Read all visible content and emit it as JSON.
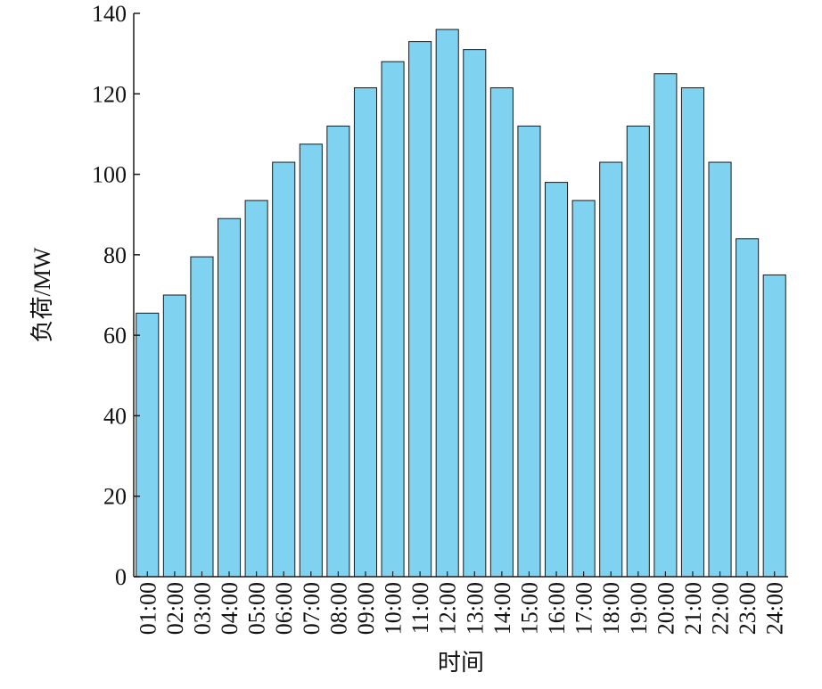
{
  "chart_data": {
    "type": "bar",
    "categories": [
      "01:00",
      "02:00",
      "03:00",
      "04:00",
      "05:00",
      "06:00",
      "07:00",
      "08:00",
      "09:00",
      "10:00",
      "11:00",
      "12:00",
      "13:00",
      "14:00",
      "15:00",
      "16:00",
      "17:00",
      "18:00",
      "19:00",
      "20:00",
      "21:00",
      "22:00",
      "23:00",
      "24:00"
    ],
    "values": [
      65.5,
      70,
      79.5,
      89,
      93.5,
      103,
      107.5,
      112,
      121.5,
      128,
      133,
      136,
      131,
      121.5,
      112,
      98,
      93.5,
      103,
      112,
      125,
      121.5,
      103,
      84,
      75
    ],
    "title": "",
    "xlabel": "时间",
    "ylabel": "负荷/MW",
    "ylim": [
      0,
      140
    ],
    "yticks": [
      0,
      20,
      40,
      60,
      80,
      100,
      120,
      140
    ],
    "grid": false,
    "colors": {
      "bar_fill": "#7fd3f0",
      "bar_stroke": "#1a1a1a",
      "axis": "#1a1a1a"
    }
  }
}
